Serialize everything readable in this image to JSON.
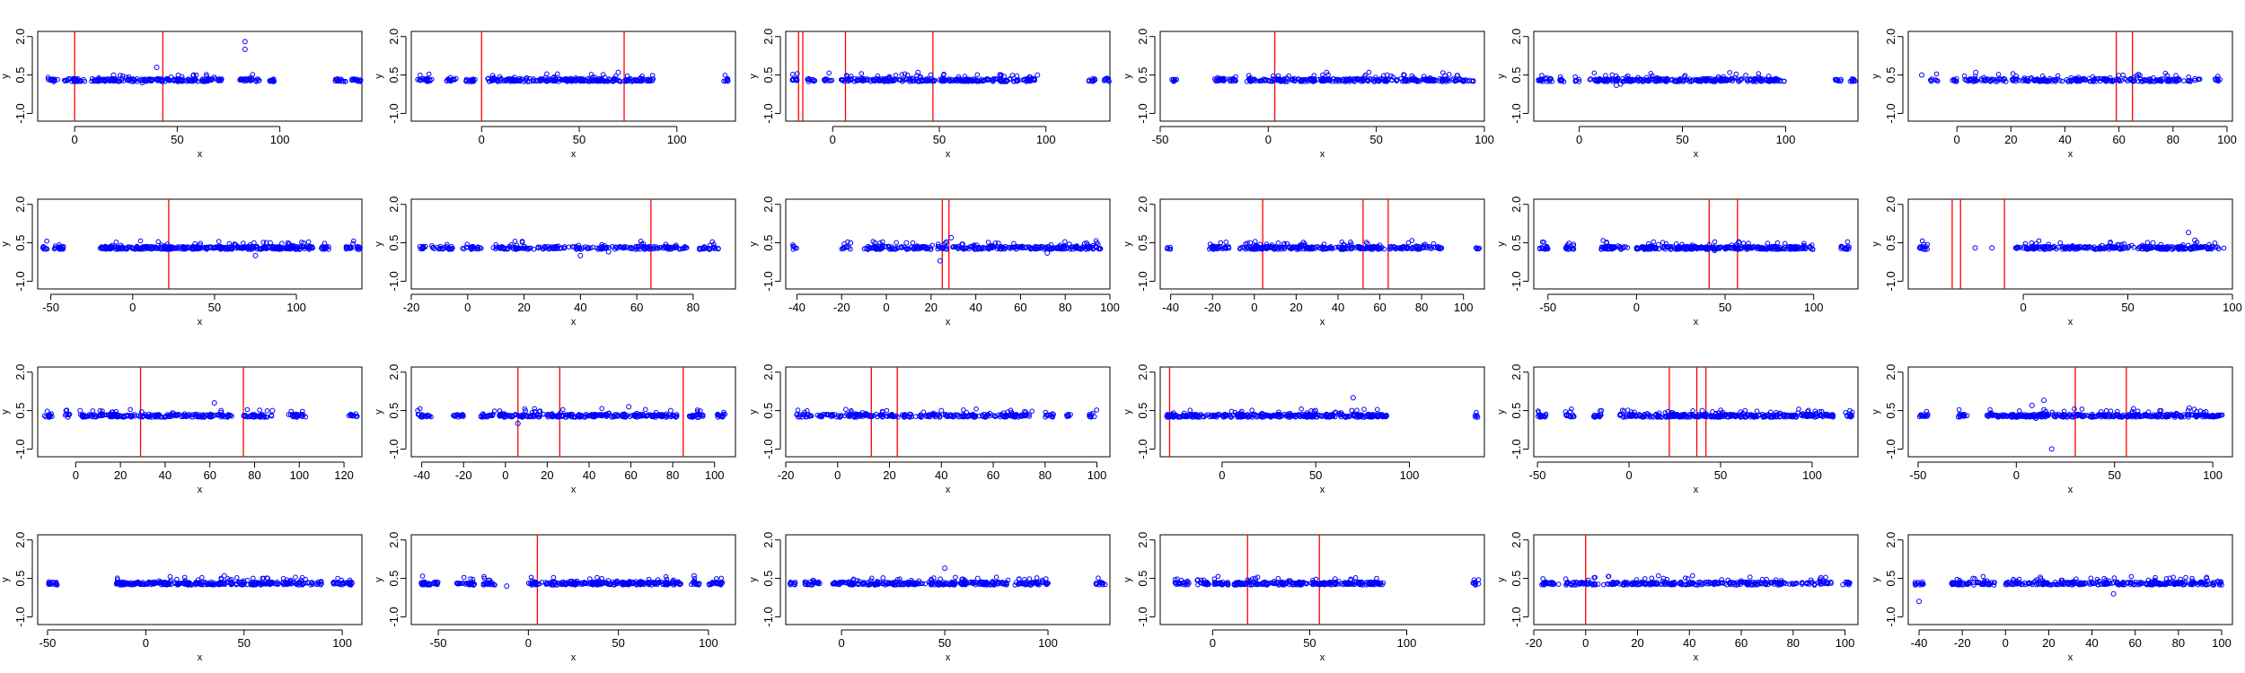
{
  "colors": {
    "points": "#0000ff",
    "changepoint": "#ff0000",
    "axis": "#000000"
  },
  "chart_data": [
    {
      "type": "scatter",
      "xlabel": "x",
      "ylabel": "y",
      "xticks": [
        0,
        50,
        100
      ],
      "yticks": [
        "-1.0",
        "0.5",
        "2.0"
      ],
      "xlim": [
        -18,
        140
      ],
      "ylim": [
        -1.3,
        2.2
      ],
      "changepoints": [
        0,
        43
      ],
      "segments": [
        [
          -13,
          -8
        ],
        [
          -5,
          5
        ],
        [
          8,
          60
        ],
        [
          62,
          72
        ],
        [
          80,
          90
        ],
        [
          94,
          98
        ],
        [
          127,
          132
        ],
        [
          135,
          140
        ]
      ],
      "outliers": [
        [
          19,
          0.5
        ],
        [
          33,
          0.2
        ],
        [
          40,
          0.8
        ],
        [
          83,
          1.5
        ],
        [
          83,
          1.8
        ],
        [
          58,
          0.5
        ]
      ]
    },
    {
      "type": "scatter",
      "xlabel": "x",
      "ylabel": "y",
      "xticks": [
        0,
        50,
        100
      ],
      "yticks": [
        "-1.0",
        "0.5",
        "2.0"
      ],
      "xlim": [
        -36,
        130
      ],
      "ylim": [
        -1.3,
        2.2
      ],
      "changepoints": [
        0,
        73
      ],
      "segments": [
        [
          -33,
          -25
        ],
        [
          -18,
          -13
        ],
        [
          -8,
          -3
        ],
        [
          3,
          88
        ],
        [
          124,
          127
        ]
      ],
      "outliers": [
        [
          70,
          0.6
        ],
        [
          58,
          0.4
        ]
      ]
    },
    {
      "type": "scatter",
      "xlabel": "x",
      "ylabel": "y",
      "xticks": [
        0,
        50,
        100
      ],
      "yticks": [
        "-1.0",
        "0.5",
        "2.0"
      ],
      "xlim": [
        -22,
        130
      ],
      "ylim": [
        -1.3,
        2.2
      ],
      "changepoints": [
        -16,
        -14,
        6,
        47
      ],
      "segments": [
        [
          -20,
          -16
        ],
        [
          -12,
          -8
        ],
        [
          -4,
          0
        ],
        [
          4,
          95
        ],
        [
          120,
          123
        ],
        [
          127,
          130
        ]
      ],
      "outliers": [
        [
          40,
          0.6
        ],
        [
          46,
          0.5
        ],
        [
          96,
          0.5
        ]
      ]
    },
    {
      "type": "scatter",
      "xlabel": "x",
      "ylabel": "y",
      "xticks": [
        -50,
        0,
        50,
        100
      ],
      "yticks": [
        "-1.0",
        "0.5",
        "2.0"
      ],
      "xlim": [
        -50,
        100
      ],
      "ylim": [
        -1.3,
        2.2
      ],
      "changepoints": [
        3
      ],
      "segments": [
        [
          -45,
          -42
        ],
        [
          -25,
          -15
        ],
        [
          -10,
          95
        ]
      ],
      "outliers": [
        [
          27,
          0.6
        ],
        [
          55,
          0.5
        ]
      ]
    },
    {
      "type": "scatter",
      "xlabel": "x",
      "ylabel": "y",
      "xticks": [
        0,
        50,
        100
      ],
      "yticks": [
        "-1.0",
        "0.5",
        "2.0"
      ],
      "xlim": [
        -22,
        135
      ],
      "ylim": [
        -1.3,
        2.2
      ],
      "changepoints": [],
      "segments": [
        [
          -20,
          -13
        ],
        [
          -10,
          -6
        ],
        [
          -2,
          0
        ],
        [
          5,
          100
        ],
        [
          124,
          127
        ],
        [
          131,
          134
        ]
      ],
      "outliers": [
        [
          18,
          0.1
        ],
        [
          20,
          0.15
        ]
      ]
    },
    {
      "type": "scatter",
      "xlabel": "x",
      "ylabel": "y",
      "xticks": [
        0,
        20,
        40,
        60,
        80,
        100
      ],
      "yticks": [
        "-1.0",
        "0.5",
        "2.0"
      ],
      "xlim": [
        -18,
        102
      ],
      "ylim": [
        -1.3,
        2.2
      ],
      "changepoints": [
        59,
        65
      ],
      "segments": [
        [
          -10,
          -7
        ],
        [
          -3,
          0
        ],
        [
          2,
          90
        ],
        [
          95,
          98
        ]
      ],
      "outliers": [
        [
          -13,
          0.5
        ],
        [
          7,
          0.6
        ],
        [
          45,
          0.4
        ]
      ]
    },
    {
      "type": "scatter",
      "xlabel": "x",
      "ylabel": "y",
      "xticks": [
        -50,
        0,
        50,
        100
      ],
      "yticks": [
        "-1.0",
        "0.5",
        "2.0"
      ],
      "xlim": [
        -58,
        140
      ],
      "ylim": [
        -1.3,
        2.2
      ],
      "changepoints": [
        22
      ],
      "segments": [
        [
          -55,
          -52
        ],
        [
          -48,
          -42
        ],
        [
          -20,
          110
        ],
        [
          115,
          120
        ],
        [
          130,
          135
        ],
        [
          137,
          140
        ]
      ],
      "outliers": [
        [
          75,
          0.0
        ],
        [
          84,
          0.5
        ],
        [
          41,
          0.4
        ]
      ]
    },
    {
      "type": "scatter",
      "xlabel": "x",
      "ylabel": "y",
      "xticks": [
        -20,
        0,
        20,
        40,
        60,
        80
      ],
      "yticks": [
        "-1.0",
        "0.5",
        "2.0"
      ],
      "xlim": [
        -20,
        95
      ],
      "ylim": [
        -1.3,
        2.2
      ],
      "changepoints": [
        65
      ],
      "segments": [
        [
          -17,
          -5
        ],
        [
          -2,
          5
        ],
        [
          8,
          78
        ],
        [
          82,
          90
        ]
      ],
      "outliers": [
        [
          40,
          0.0
        ],
        [
          50,
          0.15
        ]
      ]
    },
    {
      "type": "scatter",
      "xlabel": "x",
      "ylabel": "y",
      "xticks": [
        -40,
        -20,
        0,
        20,
        40,
        60,
        80,
        100
      ],
      "yticks": [
        "-1.0",
        "0.5",
        "2.0"
      ],
      "xlim": [
        -45,
        100
      ],
      "ylim": [
        -1.3,
        2.2
      ],
      "changepoints": [
        25,
        28
      ],
      "segments": [
        [
          -42,
          -40
        ],
        [
          -20,
          -16
        ],
        [
          -10,
          96
        ]
      ],
      "outliers": [
        [
          9,
          0.5
        ],
        [
          24,
          -0.2
        ],
        [
          29,
          0.7
        ],
        [
          72,
          0.1
        ],
        [
          -16,
          0.5
        ]
      ]
    },
    {
      "type": "scatter",
      "xlabel": "x",
      "ylabel": "y",
      "xticks": [
        -40,
        -20,
        0,
        20,
        40,
        60,
        80,
        100
      ],
      "yticks": [
        "-1.0",
        "0.5",
        "2.0"
      ],
      "xlim": [
        -45,
        110
      ],
      "ylim": [
        -1.3,
        2.2
      ],
      "changepoints": [
        4,
        52,
        64
      ],
      "segments": [
        [
          -42,
          -40
        ],
        [
          -22,
          -12
        ],
        [
          -8,
          90
        ],
        [
          106,
          108
        ]
      ],
      "outliers": [
        [
          -2,
          0.5
        ],
        [
          60,
          0.4
        ]
      ]
    },
    {
      "type": "scatter",
      "xlabel": "x",
      "ylabel": "y",
      "xticks": [
        -50,
        0,
        50,
        100
      ],
      "yticks": [
        "-1.0",
        "0.5",
        "2.0"
      ],
      "xlim": [
        -58,
        125
      ],
      "ylim": [
        -1.3,
        2.2
      ],
      "changepoints": [
        41,
        57
      ],
      "segments": [
        [
          -55,
          -50
        ],
        [
          -40,
          -35
        ],
        [
          -20,
          -5
        ],
        [
          0,
          100
        ],
        [
          115,
          120
        ]
      ],
      "outliers": [
        [
          44,
          0.2
        ],
        [
          58,
          0.5
        ]
      ]
    },
    {
      "type": "scatter",
      "xlabel": "x",
      "ylabel": "y",
      "xticks": [
        0,
        50,
        100
      ],
      "yticks": [
        "-1.0",
        "0.5",
        "2.0"
      ],
      "xlim": [
        -55,
        100
      ],
      "ylim": [
        -1.3,
        2.2
      ],
      "changepoints": [
        -34,
        -30,
        -9
      ],
      "segments": [
        [
          -50,
          -45
        ],
        [
          -5,
          96
        ]
      ],
      "outliers": [
        [
          -23,
          0.3
        ],
        [
          -15,
          0.3
        ],
        [
          79,
          0.9
        ],
        [
          82,
          0.6
        ],
        [
          62,
          0.5
        ]
      ]
    },
    {
      "type": "scatter",
      "xlabel": "x",
      "ylabel": "y",
      "xticks": [
        0,
        20,
        40,
        60,
        80,
        100,
        120
      ],
      "yticks": [
        "-1.0",
        "0.5",
        "2.0"
      ],
      "xlim": [
        -17,
        128
      ],
      "ylim": [
        -1.3,
        2.2
      ],
      "changepoints": [
        29,
        75
      ],
      "segments": [
        [
          -14,
          -10
        ],
        [
          -5,
          -2
        ],
        [
          2,
          70
        ],
        [
          75,
          88
        ],
        [
          95,
          103
        ],
        [
          122,
          126
        ]
      ],
      "outliers": [
        [
          2,
          0.5
        ],
        [
          62,
          0.8
        ],
        [
          88,
          0.5
        ],
        [
          65,
          0.5
        ]
      ]
    },
    {
      "type": "scatter",
      "xlabel": "x",
      "ylabel": "y",
      "xticks": [
        -40,
        -20,
        0,
        20,
        40,
        60,
        80,
        100
      ],
      "yticks": [
        "-1.0",
        "0.5",
        "2.0"
      ],
      "xlim": [
        -45,
        110
      ],
      "ylim": [
        -1.3,
        2.2
      ],
      "changepoints": [
        6,
        26,
        85
      ],
      "segments": [
        [
          -42,
          -35
        ],
        [
          -25,
          -20
        ],
        [
          -12,
          82
        ],
        [
          87,
          95
        ],
        [
          100,
          105
        ]
      ],
      "outliers": [
        [
          6,
          0.0
        ],
        [
          59,
          0.65
        ],
        [
          79,
          0.5
        ]
      ]
    },
    {
      "type": "scatter",
      "xlabel": "x",
      "ylabel": "y",
      "xticks": [
        -20,
        0,
        20,
        40,
        60,
        80,
        100
      ],
      "yticks": [
        "-1.0",
        "0.5",
        "2.0"
      ],
      "xlim": [
        -20,
        105
      ],
      "ylim": [
        -1.3,
        2.2
      ],
      "changepoints": [
        13,
        23
      ],
      "segments": [
        [
          -17,
          -10
        ],
        [
          -8,
          75
        ],
        [
          80,
          84
        ],
        [
          88,
          90
        ],
        [
          97,
          100
        ]
      ],
      "outliers": [
        [
          40,
          0.5
        ],
        [
          64,
          0.4
        ]
      ]
    },
    {
      "type": "scatter",
      "xlabel": "x",
      "ylabel": "y",
      "xticks": [
        0,
        50,
        100
      ],
      "yticks": [
        "-1.0",
        "0.5",
        "2.0"
      ],
      "xlim": [
        -33,
        140
      ],
      "ylim": [
        -1.3,
        2.2
      ],
      "changepoints": [
        -28
      ],
      "segments": [
        [
          -30,
          88
        ],
        [
          135,
          137
        ]
      ],
      "outliers": [
        [
          70,
          1.0
        ],
        [
          60,
          0.4
        ]
      ]
    },
    {
      "type": "scatter",
      "xlabel": "x",
      "ylabel": "y",
      "xticks": [
        -50,
        0,
        50,
        100
      ],
      "yticks": [
        "-1.0",
        "0.5",
        "2.0"
      ],
      "xlim": [
        -52,
        125
      ],
      "ylim": [
        -1.3,
        2.2
      ],
      "changepoints": [
        22,
        37,
        42
      ],
      "segments": [
        [
          -50,
          -45
        ],
        [
          -35,
          -30
        ],
        [
          -20,
          -15
        ],
        [
          -5,
          112
        ],
        [
          118,
          122
        ]
      ],
      "outliers": [
        [
          40,
          0.5
        ]
      ]
    },
    {
      "type": "scatter",
      "xlabel": "x",
      "ylabel": "y",
      "xticks": [
        -50,
        0,
        50,
        100
      ],
      "yticks": [
        "-1.0",
        "0.5",
        "2.0"
      ],
      "xlim": [
        -55,
        110
      ],
      "ylim": [
        -1.3,
        2.2
      ],
      "changepoints": [
        30,
        56
      ],
      "segments": [
        [
          -50,
          -45
        ],
        [
          -30,
          -25
        ],
        [
          -15,
          105
        ]
      ],
      "outliers": [
        [
          8,
          0.7
        ],
        [
          14,
          0.9
        ],
        [
          18,
          -1.0
        ],
        [
          10,
          0.2
        ],
        [
          88,
          0.6
        ]
      ]
    },
    {
      "type": "scatter",
      "xlabel": "x",
      "ylabel": "y",
      "xticks": [
        -50,
        0,
        50,
        100
      ],
      "yticks": [
        "-1.0",
        "0.5",
        "2.0"
      ],
      "xlim": [
        -55,
        110
      ],
      "ylim": [
        -1.3,
        2.2
      ],
      "changepoints": [],
      "segments": [
        [
          -50,
          -45
        ],
        [
          -15,
          90
        ],
        [
          95,
          105
        ]
      ],
      "outliers": [
        [
          40,
          0.6
        ],
        [
          62,
          0.5
        ]
      ]
    },
    {
      "type": "scatter",
      "xlabel": "x",
      "ylabel": "y",
      "xticks": [
        -50,
        0,
        50,
        100
      ],
      "yticks": [
        "-1.0",
        "0.5",
        "2.0"
      ],
      "xlim": [
        -65,
        115
      ],
      "ylim": [
        -1.3,
        2.2
      ],
      "changepoints": [
        5
      ],
      "segments": [
        [
          -60,
          -50
        ],
        [
          -40,
          -30
        ],
        [
          -25,
          -18
        ],
        [
          0,
          85
        ],
        [
          90,
          95
        ],
        [
          100,
          108
        ]
      ],
      "outliers": [
        [
          -12,
          0.2
        ],
        [
          92,
          0.6
        ]
      ]
    },
    {
      "type": "scatter",
      "xlabel": "x",
      "ylabel": "y",
      "xticks": [
        0,
        50,
        100
      ],
      "yticks": [
        "-1.0",
        "0.5",
        "2.0"
      ],
      "xlim": [
        -27,
        130
      ],
      "ylim": [
        -1.3,
        2.2
      ],
      "changepoints": [],
      "segments": [
        [
          -25,
          -22
        ],
        [
          -18,
          -10
        ],
        [
          -5,
          100
        ],
        [
          123,
          128
        ]
      ],
      "outliers": [
        [
          50,
          0.9
        ],
        [
          66,
          0.5
        ]
      ]
    },
    {
      "type": "scatter",
      "xlabel": "x",
      "ylabel": "y",
      "xticks": [
        0,
        50,
        100
      ],
      "yticks": [
        "-1.0",
        "0.5",
        "2.0"
      ],
      "xlim": [
        -27,
        140
      ],
      "ylim": [
        -1.3,
        2.2
      ],
      "changepoints": [
        18,
        55
      ],
      "segments": [
        [
          -20,
          -12
        ],
        [
          -8,
          88
        ],
        [
          134,
          137
        ]
      ],
      "outliers": [
        [
          22,
          0.5
        ],
        [
          40,
          0.4
        ]
      ]
    },
    {
      "type": "scatter",
      "xlabel": "x",
      "ylabel": "y",
      "xticks": [
        -20,
        0,
        20,
        40,
        60,
        80,
        100
      ],
      "yticks": [
        "-1.0",
        "0.5",
        "2.0"
      ],
      "xlim": [
        -20,
        105
      ],
      "ylim": [
        -1.3,
        2.2
      ],
      "changepoints": [
        0
      ],
      "segments": [
        [
          -17,
          -10
        ],
        [
          -8,
          95
        ],
        [
          99,
          102
        ]
      ],
      "outliers": [
        [
          30,
          0.5
        ],
        [
          60,
          0.4
        ]
      ]
    },
    {
      "type": "scatter",
      "xlabel": "x",
      "ylabel": "y",
      "xticks": [
        -40,
        -20,
        0,
        20,
        40,
        60,
        80,
        100
      ],
      "yticks": [
        "-1.0",
        "0.5",
        "2.0"
      ],
      "xlim": [
        -45,
        105
      ],
      "ylim": [
        -1.3,
        2.2
      ],
      "changepoints": [],
      "segments": [
        [
          -42,
          -38
        ],
        [
          -25,
          -5
        ],
        [
          0,
          100
        ]
      ],
      "outliers": [
        [
          -40,
          -0.4
        ],
        [
          -15,
          0.5
        ],
        [
          50,
          -0.1
        ],
        [
          93,
          0.5
        ]
      ]
    }
  ]
}
